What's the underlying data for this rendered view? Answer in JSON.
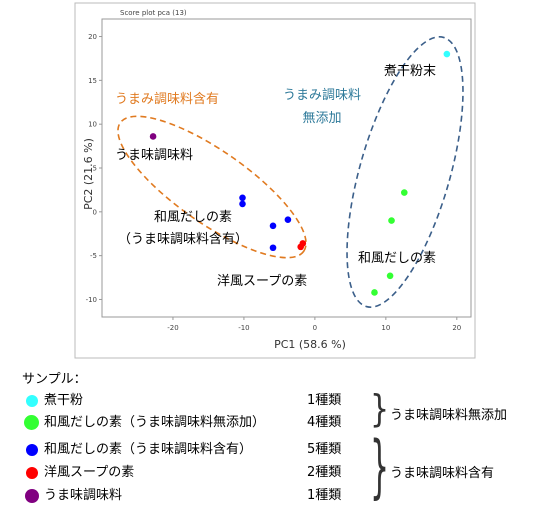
{
  "chart_data": {
    "type": "scatter",
    "title": "Score plot pca (13)",
    "xlabel": "PC1 (58.6 %)",
    "ylabel": "PC2 (21.6 %)",
    "xlim": [
      -30,
      22
    ],
    "ylim": [
      -12,
      22
    ],
    "xticks": [
      -20,
      -10,
      0,
      10,
      20
    ],
    "yticks": [
      -10,
      -5,
      0,
      5,
      10,
      15,
      20
    ],
    "series": [
      {
        "color": "#33ffff",
        "points": [
          [
            18.6,
            18.0
          ]
        ]
      },
      {
        "color": "#33ff33",
        "points": [
          [
            12.6,
            2.2
          ],
          [
            10.8,
            -1.0
          ],
          [
            10.6,
            -7.3
          ],
          [
            8.4,
            -9.2
          ]
        ]
      },
      {
        "color": "#0000ff",
        "points": [
          [
            -10.2,
            1.6
          ],
          [
            -10.2,
            0.9
          ],
          [
            -3.8,
            -0.9
          ],
          [
            -5.9,
            -1.6
          ],
          [
            -5.9,
            -4.1
          ]
        ]
      },
      {
        "color": "#ff0000",
        "points": [
          [
            -1.7,
            -3.6
          ],
          [
            -2.0,
            -4.0
          ]
        ]
      },
      {
        "color": "#800080",
        "points": [
          [
            -22.8,
            8.6
          ]
        ]
      }
    ],
    "annotations": {
      "niboshi": "煮干粉末",
      "umami_with": "うまみ調味料含有",
      "umami_without_line1": "うまみ調味料",
      "umami_without_line2": "無添加",
      "seasoning": "うま味調味料",
      "wafu_with_line1": "和風だしの素",
      "wafu_with_line2": "（うま味調味料含有）",
      "western": "洋風スープの素",
      "wafu_without": "和風だしの素"
    }
  },
  "legend": {
    "title": "サンプル：",
    "items": [
      {
        "label": "煮干粉",
        "count": "1種類",
        "color": "#33ffff"
      },
      {
        "label": "和風だしの素（うま味調味料無添加）",
        "count": "4種類",
        "color": "#33ff33"
      },
      {
        "label": "和風だしの素（うま味調味料含有）",
        "count": "5種類",
        "color": "#0000ff"
      },
      {
        "label": "洋風スープの素",
        "count": "2種類",
        "color": "#ff0000"
      },
      {
        "label": "うま味調味料",
        "count": "1種類",
        "color": "#800080"
      }
    ],
    "group_without": "うま味調味料無添加",
    "group_with": "うま味調味料含有"
  }
}
